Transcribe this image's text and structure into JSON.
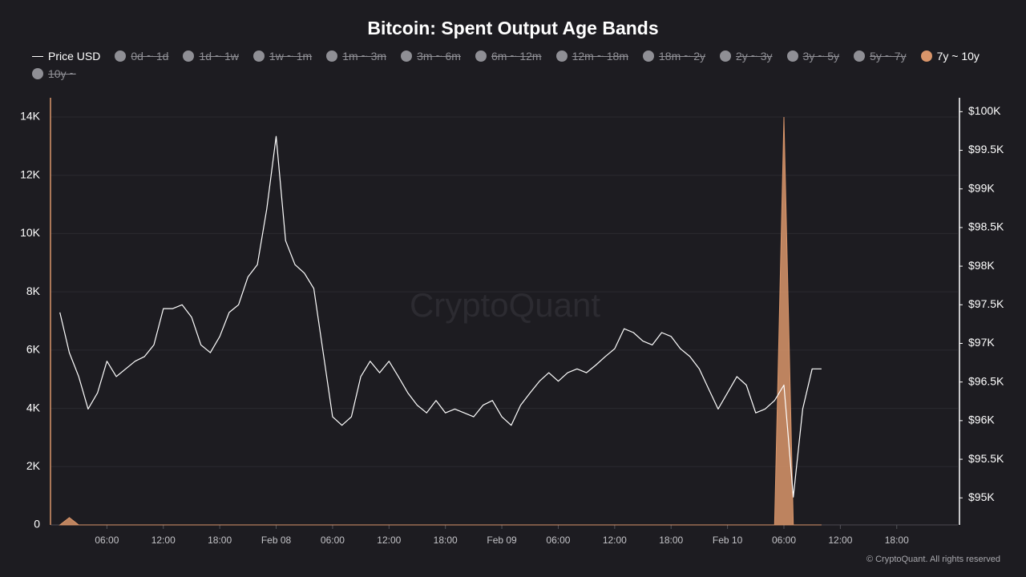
{
  "chart_data": {
    "type": "line",
    "title": "Bitcoin: Spent Output Age Bands",
    "watermark": "CryptoQuant",
    "footer": "© CryptoQuant. All rights reserved",
    "x": [
      1,
      2,
      3,
      4,
      5,
      6,
      7,
      8,
      9,
      10,
      11,
      12,
      13,
      14,
      15,
      16,
      17,
      18,
      19,
      20,
      21,
      22,
      23,
      24,
      25,
      26,
      27,
      28,
      29,
      30,
      31,
      32,
      33,
      34,
      35,
      36,
      37,
      38,
      39,
      40,
      41,
      42,
      43,
      44,
      45,
      46,
      47,
      48,
      49,
      50,
      51,
      52,
      53,
      54,
      55,
      56,
      57,
      58,
      59,
      60,
      61,
      62,
      63,
      64,
      65,
      66,
      67,
      68,
      69,
      70,
      71,
      72,
      73,
      74,
      75,
      76,
      77,
      78,
      79,
      80,
      81,
      82
    ],
    "xlim": [
      0,
      96.5
    ],
    "xticks": [
      {
        "value": 6,
        "label": "06:00"
      },
      {
        "value": 12,
        "label": "12:00"
      },
      {
        "value": 18,
        "label": "18:00"
      },
      {
        "value": 24,
        "label": "Feb 08"
      },
      {
        "value": 30,
        "label": "06:00"
      },
      {
        "value": 36,
        "label": "12:00"
      },
      {
        "value": 42,
        "label": "18:00"
      },
      {
        "value": 48,
        "label": "Feb 09"
      },
      {
        "value": 54,
        "label": "06:00"
      },
      {
        "value": 60,
        "label": "12:00"
      },
      {
        "value": 66,
        "label": "18:00"
      },
      {
        "value": 72,
        "label": "Feb 10"
      },
      {
        "value": 78,
        "label": "06:00"
      },
      {
        "value": 84,
        "label": "12:00"
      },
      {
        "value": 90,
        "label": "18:00"
      }
    ],
    "ylim": [
      0,
      14660
    ],
    "yticks": [
      {
        "value": 0,
        "label": "0"
      },
      {
        "value": 2000,
        "label": "2K"
      },
      {
        "value": 4000,
        "label": "4K"
      },
      {
        "value": 6000,
        "label": "6K"
      },
      {
        "value": 8000,
        "label": "8K"
      },
      {
        "value": 10000,
        "label": "10K"
      },
      {
        "value": 12000,
        "label": "12K"
      },
      {
        "value": 14000,
        "label": "14K"
      }
    ],
    "y2lim": [
      94650,
      100180
    ],
    "y2ticks": [
      {
        "value": 95000,
        "label": "$95K"
      },
      {
        "value": 95500,
        "label": "$95.5K"
      },
      {
        "value": 96000,
        "label": "$96K"
      },
      {
        "value": 96500,
        "label": "$96.5K"
      },
      {
        "value": 97000,
        "label": "$97K"
      },
      {
        "value": 97500,
        "label": "$97.5K"
      },
      {
        "value": 98000,
        "label": "$98K"
      },
      {
        "value": 98500,
        "label": "$98.5K"
      },
      {
        "value": 99000,
        "label": "$99K"
      },
      {
        "value": 99500,
        "label": "$99.5K"
      },
      {
        "value": 100000,
        "label": "$100K"
      }
    ],
    "grid": true,
    "series": [
      {
        "name": "Price USD",
        "color": "#ffffff",
        "axis": "y2",
        "kind": "line",
        "values": [
          97400,
          96880,
          96570,
          96150,
          96360,
          96770,
          96570,
          96670,
          96770,
          96830,
          96980,
          97450,
          97450,
          97500,
          97340,
          96980,
          96880,
          97090,
          97400,
          97500,
          97860,
          98020,
          98740,
          99680,
          98330,
          98020,
          97910,
          97710,
          96880,
          96050,
          95940,
          96050,
          96570,
          96770,
          96620,
          96770,
          96570,
          96360,
          96200,
          96100,
          96260,
          96100,
          96150,
          96100,
          96050,
          96200,
          96260,
          96050,
          95940,
          96200,
          96360,
          96510,
          96620,
          96510,
          96620,
          96670,
          96620,
          96720,
          96830,
          96930,
          97190,
          97140,
          97030,
          96980,
          97140,
          97090,
          96930,
          96830,
          96670,
          96410,
          96150,
          96360,
          96570,
          96460,
          96100,
          96150,
          96260,
          96460,
          95010,
          96150,
          96670,
          96670
        ]
      },
      {
        "name": "0d ~ 1d",
        "color": "#8f8f95",
        "hidden": true
      },
      {
        "name": "1d ~ 1w",
        "color": "#8f8f95",
        "hidden": true
      },
      {
        "name": "1w ~ 1m",
        "color": "#8f8f95",
        "hidden": true
      },
      {
        "name": "1m ~ 3m",
        "color": "#8f8f95",
        "hidden": true
      },
      {
        "name": "3m ~ 6m",
        "color": "#8f8f95",
        "hidden": true
      },
      {
        "name": "6m ~ 12m",
        "color": "#8f8f95",
        "hidden": true
      },
      {
        "name": "12m ~ 18m",
        "color": "#8f8f95",
        "hidden": true
      },
      {
        "name": "18m ~ 2y",
        "color": "#8f8f95",
        "hidden": true
      },
      {
        "name": "2y ~ 3y",
        "color": "#8f8f95",
        "hidden": true
      },
      {
        "name": "3y ~ 5y",
        "color": "#8f8f95",
        "hidden": true
      },
      {
        "name": "5y ~ 7y",
        "color": "#8f8f95",
        "hidden": true
      },
      {
        "name": "7y ~ 10y",
        "color": "#d9956a",
        "kind": "area",
        "values": [
          0,
          250,
          0,
          0,
          0,
          0,
          0,
          0,
          0,
          0,
          0,
          0,
          0,
          0,
          0,
          0,
          0,
          0,
          0,
          0,
          0,
          0,
          0,
          0,
          0,
          0,
          0,
          0,
          0,
          0,
          0,
          0,
          0,
          0,
          0,
          0,
          0,
          0,
          0,
          0,
          0,
          0,
          0,
          0,
          0,
          0,
          0,
          0,
          0,
          0,
          0,
          0,
          0,
          0,
          0,
          0,
          0,
          0,
          0,
          0,
          0,
          0,
          0,
          0,
          0,
          0,
          0,
          0,
          0,
          0,
          0,
          0,
          0,
          0,
          0,
          0,
          0,
          14000,
          0,
          0,
          0,
          0
        ]
      },
      {
        "name": "10y ~",
        "color": "#8f8f95",
        "hidden": true
      }
    ]
  }
}
